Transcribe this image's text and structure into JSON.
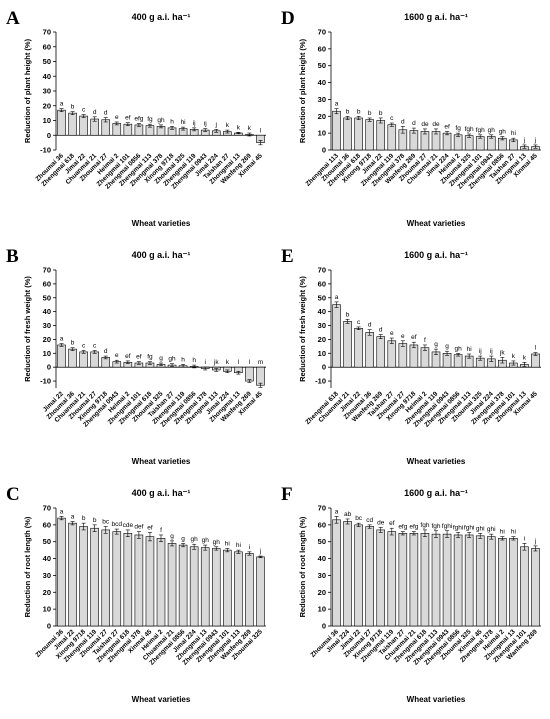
{
  "chart_data": [
    {
      "type": "bar",
      "label": "A",
      "title": "400 g a.i. ha⁻¹",
      "y_label": "Reduction of plant height (%)",
      "x_label": "Wheat varieties",
      "color": "#d9d9d9",
      "categories": [
        "Zhoumai 36",
        "Zhengmai 618",
        "Jimai 22",
        "Chuanmai 21",
        "Zhoumai 27",
        "Heimai 2",
        "Zhengmai 101",
        "Zhengmai 0856",
        "Zhengmai 113",
        "Zhengmai 378",
        "Xinong 9718",
        "Zhoumai 325",
        "Zhengmai 119",
        "Zhengmai 0943",
        "Jimai 224",
        "Taishan 27",
        "Zhongmai 13",
        "Wanfeng 269",
        "Xinmai 45"
      ],
      "values": [
        17,
        15,
        13,
        11,
        10.5,
        8,
        7.5,
        7,
        6.5,
        6,
        5,
        4.5,
        4,
        3.5,
        3,
        2.5,
        1.5,
        0.5,
        -5
      ],
      "errors": [
        1,
        1,
        1,
        1.5,
        1.5,
        1,
        1,
        1,
        1,
        1,
        1,
        1,
        1,
        1,
        1,
        1,
        0.5,
        1,
        1.5
      ],
      "letters": [
        "a",
        "b",
        "c",
        "d",
        "d",
        "e",
        "ef",
        "efg",
        "fg",
        "gh",
        "h",
        "hi",
        "ij",
        "ij",
        "j",
        "k",
        "k",
        "k",
        "l"
      ],
      "ylim": [
        -10,
        70
      ],
      "yticks": [
        -10,
        0,
        10,
        20,
        30,
        40,
        50,
        60,
        70
      ]
    },
    {
      "type": "bar",
      "label": "B",
      "title": "400 g a.i. ha⁻¹",
      "y_label": "Reduction of fresh weight (%)",
      "x_label": "Wheat varieties",
      "color": "#d9d9d9",
      "categories": [
        "Jimai 22",
        "Zhoumai 36",
        "Chuanmai 21",
        "Zhoumai 27",
        "Xinong 9718",
        "Zhengmai 0943",
        "Heimai 2",
        "Zhengmai 101",
        "Zhengmai 618",
        "Zhoumai 325",
        "Taishan 27",
        "Zhengmai 119",
        "Zhengmai 0856",
        "Zhengmai 378",
        "Zhengmai 113",
        "Jimai 224",
        "Zhongmai 13",
        "Wanfeng 269",
        "Xinmai 45"
      ],
      "values": [
        16,
        13,
        11,
        11,
        7,
        4,
        3.5,
        3,
        3,
        2,
        1.5,
        1,
        0.5,
        -1,
        -2,
        -3,
        -4,
        -10,
        -13
      ],
      "errors": [
        1,
        1,
        1,
        1,
        1,
        1,
        1,
        1,
        1,
        1,
        1,
        1,
        1,
        1,
        1,
        1,
        1,
        1,
        1.5
      ],
      "letters": [
        "a",
        "b",
        "c",
        "c",
        "d",
        "e",
        "ef",
        "ef",
        "fg",
        "g",
        "gh",
        "h",
        "h",
        "i",
        "jk",
        "k",
        "l",
        "l",
        "m"
      ],
      "ylim": [
        -15,
        70
      ],
      "yticks": [
        -10,
        0,
        10,
        20,
        30,
        40,
        50,
        60,
        70
      ]
    },
    {
      "type": "bar",
      "label": "C",
      "title": "400 g a.i. ha⁻¹",
      "y_label": "Reduction of root length (%)",
      "x_label": "Wheat varieties",
      "color": "#d9d9d9",
      "categories": [
        "Zhoumai 36",
        "Jimai 22",
        "Xinong 9718",
        "Zhengmai 119",
        "Zhoumai 27",
        "Taishan 27",
        "Zhengmai 618",
        "Zhengmai 378",
        "Xinmai 45",
        "Heimai 2",
        "Chuanmai 21",
        "Zhengmai 0856",
        "Jimai 224",
        "Zhongmai 13",
        "Zhengmai 0943",
        "Zhengmai 101",
        "Zhengmai 113",
        "Wanfeng 269",
        "Zhoumai 325"
      ],
      "values": [
        64,
        61,
        59,
        58,
        57,
        56,
        55,
        54,
        53,
        52,
        49,
        48,
        47,
        46.5,
        46,
        45,
        44,
        43,
        41
      ],
      "errors": [
        1,
        1,
        2,
        2,
        2,
        1.5,
        2,
        2,
        2.5,
        2,
        1.5,
        1,
        1.5,
        1.5,
        1,
        1,
        1,
        1,
        0.5
      ],
      "letters": [
        "a",
        "a",
        "b",
        "b",
        "bc",
        "bcd",
        "cde",
        "def",
        "ef",
        "f",
        "g",
        "g",
        "gh",
        "gh",
        "gh",
        "hi",
        "hi",
        "i",
        "j"
      ],
      "ylim": [
        0,
        70
      ],
      "yticks": [
        0,
        10,
        20,
        30,
        40,
        50,
        60,
        70
      ]
    },
    {
      "type": "bar",
      "label": "D",
      "title": "1600 g a.i. ha⁻¹",
      "y_label": "Reduction of plant height (%)",
      "x_label": "Wheat varieties",
      "color": "#d9d9d9",
      "categories": [
        "Zhengmai 113",
        "Zhoumai 36",
        "Zhengmai 618",
        "Xinong 9718",
        "Jimai 22",
        "Zhengmai 119",
        "Zhengmai 378",
        "Wanfeng 269",
        "Zhoumai 27",
        "Chuanmai 21",
        "Jimai 224",
        "Heimai 2",
        "Zhoumai 325",
        "Zhengmai 101",
        "Zhengmai 0943",
        "Zhengmai 0856",
        "Taishan 27",
        "Zhongmai 13",
        "Xinmai 45"
      ],
      "values": [
        23,
        19,
        19,
        18,
        17.5,
        15,
        12,
        11.5,
        11,
        11,
        10,
        9,
        8.5,
        8,
        8,
        7,
        6,
        2,
        2
      ],
      "errors": [
        1.5,
        1,
        1,
        1,
        1.5,
        1,
        2,
        1.5,
        1.5,
        1.5,
        1,
        1,
        1,
        1,
        1,
        1,
        1,
        1,
        1
      ],
      "letters": [
        "a",
        "b",
        "b",
        "b",
        "b",
        "c",
        "d",
        "d",
        "de",
        "de",
        "ef",
        "fg",
        "fgh",
        "fgh",
        "gh",
        "gh",
        "hi",
        "j",
        "j"
      ],
      "ylim": [
        0,
        70
      ],
      "yticks": [
        0,
        10,
        20,
        30,
        40,
        50,
        60,
        70
      ]
    },
    {
      "type": "bar",
      "label": "E",
      "title": "1600 g a.i. ha⁻¹",
      "y_label": "Reduction of fresh weight (%)",
      "x_label": "Wheat varieties",
      "color": "#d9d9d9",
      "categories": [
        "Zhengmai 618",
        "Chuanmai 21",
        "Jimai 22",
        "Zhoumai 36",
        "Wanfeng 269",
        "Taishan 27",
        "Zhoumai 27",
        "Xinong 9718",
        "Heimai 2",
        "Zhengmai 119",
        "Zhengmai 0943",
        "Zhengmai 0856",
        "Zhengmai 113",
        "Zhoumai 325",
        "Jimai 224",
        "Zhengmai 378",
        "Zhengmai 101",
        "Zhongmai 13",
        "Xinmai 45"
      ],
      "values": [
        45,
        33,
        28,
        25,
        22,
        19,
        17,
        16,
        14,
        11,
        10,
        9,
        8,
        6.5,
        6,
        5,
        3,
        2,
        9.5
      ],
      "errors": [
        2,
        1.5,
        1,
        2,
        1.5,
        2,
        2,
        2,
        2,
        2,
        1.5,
        1,
        1.5,
        1.5,
        2,
        2,
        1.5,
        1.5,
        1
      ],
      "letters": [
        "a",
        "b",
        "c",
        "d",
        "d",
        "e",
        "e",
        "ef",
        "f",
        "g",
        "g",
        "gh",
        "hi",
        "ij",
        "ij",
        "jk",
        "k",
        "k",
        "l"
      ],
      "ylim": [
        -15,
        70
      ],
      "yticks": [
        -10,
        0,
        10,
        20,
        30,
        40,
        50,
        60,
        70
      ]
    },
    {
      "type": "bar",
      "label": "F",
      "title": "1600 g a.i. ha⁻¹",
      "y_label": "Reduction of root length (%)",
      "x_label": "Wheat varieties",
      "color": "#d9d9d9",
      "categories": [
        "Zhoumai 36",
        "Jimai 224",
        "Jimai 22",
        "Zhoumai 27",
        "Xinong 9718",
        "Zhengmai 119",
        "Taishan 27",
        "Chuanmai 21",
        "Zhengmai 618",
        "Zhengmai 113",
        "Zhengmai 0943",
        "Zhengmai 0856",
        "Zhoumai 325",
        "Xinmai 45",
        "Zhengmai 378",
        "Heimai 2",
        "Zhongmai 13",
        "Zhengmai 101",
        "Wanfeng 269"
      ],
      "values": [
        63,
        62,
        60,
        59,
        57,
        56,
        55,
        55,
        55,
        54.5,
        54.5,
        54,
        54,
        53.5,
        53,
        52,
        52,
        47,
        46
      ],
      "errors": [
        2,
        1.5,
        1,
        1,
        1.5,
        2,
        1,
        1,
        2,
        2,
        2,
        1.5,
        1.5,
        1.5,
        1.5,
        1,
        1,
        2,
        1.5
      ],
      "letters": [
        "a",
        "ab",
        "bc",
        "cd",
        "de",
        "ef",
        "efg",
        "efg",
        "fgh",
        "fgh",
        "fghi",
        "fghi",
        "fghi",
        "ghi",
        "ghi",
        "hi",
        "hi",
        "i",
        "j"
      ],
      "ylim": [
        0,
        70
      ],
      "yticks": [
        0,
        10,
        20,
        30,
        40,
        50,
        60,
        70
      ]
    }
  ]
}
